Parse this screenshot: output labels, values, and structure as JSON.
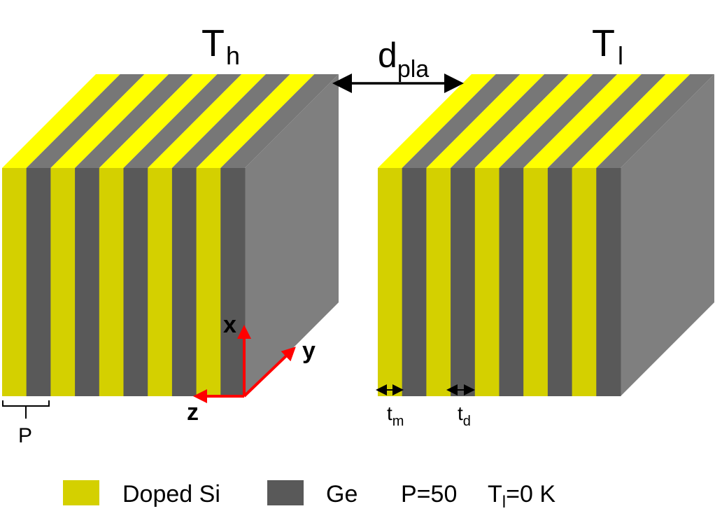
{
  "labels": {
    "t_hot": {
      "main": "T",
      "sub": "h"
    },
    "t_low": {
      "main": "T",
      "sub": "l"
    },
    "gap": {
      "main": "d",
      "sub": "pla"
    },
    "axis_x": "x",
    "axis_y": "y",
    "axis_z": "z",
    "period": "P",
    "t_metal": {
      "main": "t",
      "sub": "m"
    },
    "t_dielectric": {
      "main": "t",
      "sub": "d"
    }
  },
  "legend": {
    "doped_si": "Doped Si",
    "ge": "Ge",
    "period_value": "P=50",
    "temperature": {
      "main": "T",
      "sub": "l",
      "rest": "=0 K"
    }
  },
  "colors": {
    "doped_si_front": "#d4d000",
    "doped_si_top": "#ffff00",
    "ge_front": "#595959",
    "ge_top": "#777777",
    "side_face": "#7f7f7f",
    "axes": "#ff0000",
    "arrow": "#000000"
  },
  "blocks": {
    "left": {
      "stripes": [
        "doped_si",
        "ge",
        "doped_si",
        "ge",
        "doped_si",
        "ge",
        "doped_si",
        "ge",
        "doped_si",
        "ge"
      ]
    },
    "right": {
      "stripes": [
        "doped_si",
        "ge",
        "doped_si",
        "ge",
        "doped_si",
        "ge",
        "doped_si",
        "ge",
        "doped_si",
        "ge"
      ]
    }
  }
}
